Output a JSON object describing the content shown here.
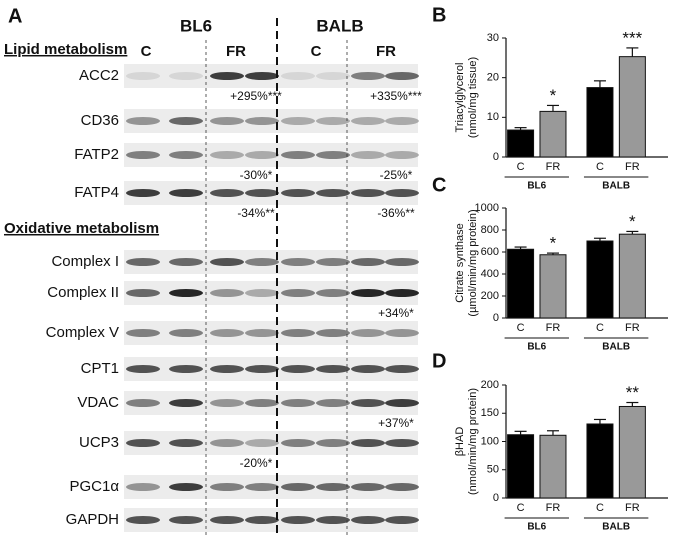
{
  "panel_a": {
    "label": "A",
    "groups": [
      "BL6",
      "BALB"
    ],
    "conditions": [
      "C",
      "FR",
      "C",
      "FR"
    ],
    "sections": [
      {
        "title": "Lipid metabolism",
        "rows": [
          {
            "label": "ACC2",
            "bl6_change": "+295%***",
            "balb_change": "+335%***"
          },
          {
            "label": "CD36"
          },
          {
            "label": "FATP2",
            "bl6_change": "-30%*",
            "balb_change": "-25%*"
          },
          {
            "label": "FATP4",
            "bl6_change": "-34%**",
            "balb_change": "-36%**"
          }
        ]
      },
      {
        "title": "Oxidative metabolism",
        "rows": [
          {
            "label": "Complex I"
          },
          {
            "label": "Complex II",
            "balb_change": "+34%*"
          },
          {
            "label": "Complex V"
          },
          {
            "label": "CPT1"
          },
          {
            "label": "VDAC",
            "balb_change": "+37%*"
          },
          {
            "label": "UCP3",
            "bl6_change": "-20%*"
          },
          {
            "label": "PGC1α"
          },
          {
            "label": "GAPDH"
          }
        ]
      }
    ]
  },
  "chart_data": [
    {
      "type": "bar",
      "panel": "B",
      "ylabel": [
        "Triacylglycerol",
        "(nmol/mg tissue)"
      ],
      "categories": [
        "C",
        "FR",
        "C",
        "FR"
      ],
      "groups": [
        "BL6",
        "BALB"
      ],
      "values": [
        6.8,
        11.5,
        17.5,
        25.3
      ],
      "errors": [
        0.6,
        1.5,
        1.7,
        2.2
      ],
      "colors": [
        "#000000",
        "#999999",
        "#000000",
        "#999999"
      ],
      "significance": [
        null,
        "*",
        null,
        "***"
      ],
      "ylim": [
        0,
        30
      ],
      "yticks": [
        0,
        10,
        20,
        30
      ]
    },
    {
      "type": "bar",
      "panel": "C",
      "ylabel": [
        "Citrate synthase",
        "(µmol/min/mg protein)"
      ],
      "categories": [
        "C",
        "FR",
        "C",
        "FR"
      ],
      "groups": [
        "BL6",
        "BALB"
      ],
      "values": [
        625,
        575,
        700,
        762
      ],
      "errors": [
        20,
        15,
        25,
        25
      ],
      "colors": [
        "#000000",
        "#999999",
        "#000000",
        "#999999"
      ],
      "significance": [
        null,
        "*",
        null,
        "*"
      ],
      "ylim": [
        0,
        1000
      ],
      "yticks": [
        0,
        200,
        400,
        600,
        800,
        1000
      ]
    },
    {
      "type": "bar",
      "panel": "D",
      "ylabel": [
        "βHAD",
        "(nmol/min/mg protein)"
      ],
      "categories": [
        "C",
        "FR",
        "C",
        "FR"
      ],
      "groups": [
        "BL6",
        "BALB"
      ],
      "values": [
        112,
        111,
        131,
        162
      ],
      "errors": [
        6,
        8,
        8,
        7
      ],
      "colors": [
        "#000000",
        "#999999",
        "#000000",
        "#999999"
      ],
      "significance": [
        null,
        null,
        null,
        "**"
      ],
      "ylim": [
        0,
        200
      ],
      "yticks": [
        0,
        50,
        100,
        150,
        200
      ]
    }
  ]
}
